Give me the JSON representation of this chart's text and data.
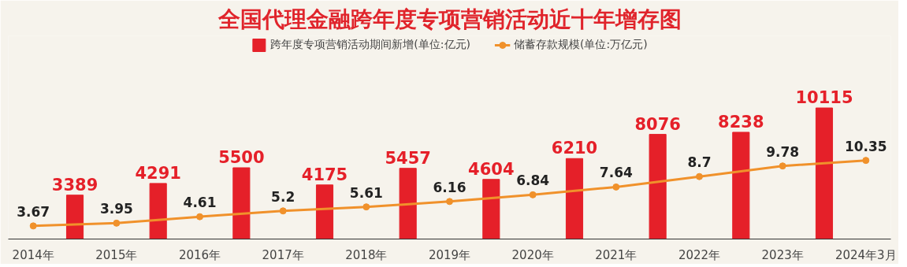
{
  "chart_data": {
    "type": "bar",
    "title": "全国代理金融跨年度专项营销活动近十年增存图",
    "categories": [
      "2014年",
      null,
      "2015年",
      null,
      "2016年",
      null,
      "2017年",
      null,
      "2018年",
      null,
      "2019年",
      null,
      "2020年",
      null,
      "2021年",
      null,
      "2022年",
      null,
      "2023年",
      null,
      "2024年3月"
    ],
    "series": [
      {
        "name": "跨年度专项营销活动期间新增(单位:亿元)",
        "color": "#e52029",
        "values": [
          null,
          3389,
          null,
          4291,
          null,
          5500,
          null,
          4175,
          null,
          5457,
          null,
          4604,
          null,
          6210,
          null,
          8076,
          null,
          8238,
          null,
          10115,
          null
        ]
      },
      {
        "name": "储蓄存款规模(单位:万亿元)",
        "type": "line",
        "axis": "y2",
        "color": "#f0912b",
        "values": [
          3.67,
          null,
          3.95,
          null,
          4.61,
          null,
          5.2,
          null,
          5.61,
          null,
          6.16,
          null,
          6.84,
          null,
          7.64,
          null,
          8.7,
          null,
          9.78,
          null,
          10.35
        ]
      }
    ],
    "data_labels": true,
    "legend": "top",
    "grid": false,
    "marker": "circle"
  }
}
